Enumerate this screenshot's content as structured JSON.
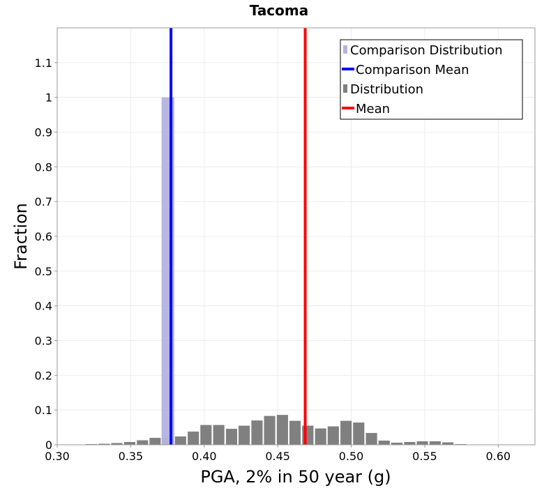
{
  "chart_data": {
    "type": "bar",
    "title": "Tacoma",
    "xlabel": "PGA, 2% in 50 year (g)",
    "ylabel": "Fraction",
    "xlim": [
      0.3,
      0.625
    ],
    "ylim": [
      0,
      1.2
    ],
    "x_ticks": [
      0.3,
      0.35,
      0.4,
      0.45,
      0.5,
      0.55,
      0.6
    ],
    "x_tick_labels": [
      "0.30",
      "0.35",
      "0.40",
      "0.45",
      "0.50",
      "0.55",
      "0.60"
    ],
    "y_ticks": [
      0,
      0.1,
      0.2,
      0.3,
      0.4,
      0.5,
      0.6,
      0.7,
      0.8,
      0.9,
      1,
      1.1
    ],
    "y_tick_labels": [
      "0",
      "0.1",
      "0.2",
      "0.3",
      "0.4",
      "0.5",
      "0.6",
      "0.7",
      "0.8",
      "0.9",
      "1",
      "1.1"
    ],
    "grid": true,
    "legend_position": "top-right",
    "bin_width": 0.0086,
    "colors": {
      "comparison_distribution": "#b3b3e0",
      "comparison_mean": "#0000ff",
      "distribution": "#808080",
      "mean": "#ff0000"
    },
    "legend": [
      {
        "label": "Comparison Distribution",
        "kind": "bar",
        "series": "comparison_distribution"
      },
      {
        "label": "Comparison Mean",
        "kind": "line",
        "series": "comparison_mean"
      },
      {
        "label": "Distribution",
        "kind": "bar",
        "series": "distribution"
      },
      {
        "label": "Mean",
        "kind": "line",
        "series": "mean"
      }
    ],
    "comparison_distribution": {
      "name": "Comparison Distribution",
      "bins": [
        {
          "x": 0.3753,
          "y": 1.0
        }
      ]
    },
    "comparison_mean": {
      "name": "Comparison Mean",
      "x": 0.3774
    },
    "mean": {
      "name": "Mean",
      "x": 0.4687
    },
    "distribution": {
      "name": "Distribution",
      "bins": [
        {
          "x": 0.3147,
          "y": 0.001
        },
        {
          "x": 0.3233,
          "y": 0.002
        },
        {
          "x": 0.332,
          "y": 0.003
        },
        {
          "x": 0.3406,
          "y": 0.005
        },
        {
          "x": 0.3493,
          "y": 0.008
        },
        {
          "x": 0.358,
          "y": 0.013
        },
        {
          "x": 0.3666,
          "y": 0.02
        },
        {
          "x": 0.3753,
          "y": 0.02
        },
        {
          "x": 0.3839,
          "y": 0.024
        },
        {
          "x": 0.3926,
          "y": 0.038
        },
        {
          "x": 0.4012,
          "y": 0.057
        },
        {
          "x": 0.4099,
          "y": 0.057
        },
        {
          "x": 0.4186,
          "y": 0.046
        },
        {
          "x": 0.4272,
          "y": 0.055
        },
        {
          "x": 0.4359,
          "y": 0.07
        },
        {
          "x": 0.4445,
          "y": 0.083
        },
        {
          "x": 0.4532,
          "y": 0.086
        },
        {
          "x": 0.4618,
          "y": 0.069
        },
        {
          "x": 0.4705,
          "y": 0.055
        },
        {
          "x": 0.4792,
          "y": 0.047
        },
        {
          "x": 0.4878,
          "y": 0.053
        },
        {
          "x": 0.4965,
          "y": 0.069
        },
        {
          "x": 0.5051,
          "y": 0.064
        },
        {
          "x": 0.5138,
          "y": 0.034
        },
        {
          "x": 0.5224,
          "y": 0.012
        },
        {
          "x": 0.5311,
          "y": 0.006
        },
        {
          "x": 0.5398,
          "y": 0.008
        },
        {
          "x": 0.5484,
          "y": 0.01
        },
        {
          "x": 0.5571,
          "y": 0.01
        },
        {
          "x": 0.5657,
          "y": 0.007
        },
        {
          "x": 0.5744,
          "y": 0.002
        },
        {
          "x": 0.583,
          "y": 0.001
        }
      ]
    }
  }
}
